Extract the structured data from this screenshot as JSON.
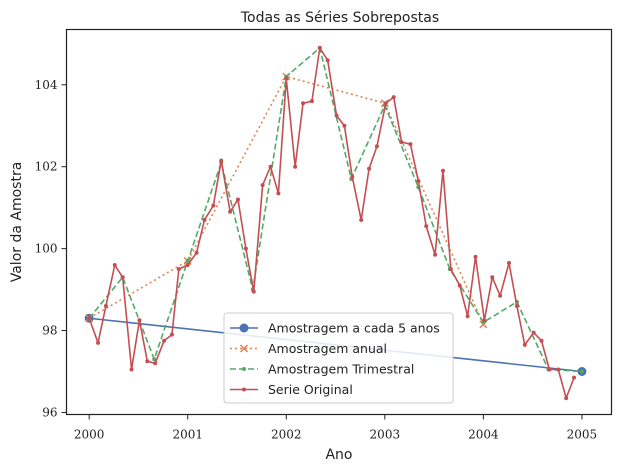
{
  "chart_data": {
    "type": "line",
    "title": "Todas as Séries Sobrepostas",
    "xlabel": "Ano",
    "ylabel": "Valor da Amostra",
    "xlim": [
      1999.77,
      2005.3
    ],
    "ylim": [
      95.95,
      105.35
    ],
    "xticks": [
      2000,
      2001,
      2002,
      2003,
      2004,
      2005
    ],
    "yticks": [
      96,
      98,
      100,
      102,
      104
    ],
    "xtick_labels": [
      "2000",
      "2001",
      "2002",
      "2003",
      "2004",
      "2005"
    ],
    "ytick_labels": [
      "96",
      "98",
      "100",
      "102",
      "104"
    ],
    "grid": false,
    "legend_position": "lower-center",
    "series": [
      {
        "name": "Amostragem a cada 5 anos",
        "color": "#4c72b0",
        "style": "solid",
        "marker": "circle",
        "x": [
          2000.0,
          2005.0
        ],
        "y": [
          98.3,
          97.0
        ]
      },
      {
        "name": "Amostragem anual",
        "color": "#dd8452",
        "style": "dotted",
        "marker": "x",
        "x": [
          2000.0,
          2001.0,
          2002.0,
          2003.0,
          2004.0
        ],
        "y": [
          98.3,
          99.7,
          104.2,
          103.55,
          98.15
        ]
      },
      {
        "name": "Amostragem Trimestral",
        "color": "#55a868",
        "style": "dashed",
        "marker": "dot",
        "x": [
          2000.0,
          2000.34,
          2000.66,
          2001.0,
          2001.34,
          2001.66,
          2002.0,
          2002.34,
          2002.66,
          2003.0,
          2003.34,
          2003.66,
          2004.0,
          2004.34,
          2004.66,
          2005.0
        ],
        "y": [
          98.3,
          99.3,
          97.3,
          99.7,
          102.1,
          99.0,
          104.2,
          104.9,
          101.7,
          103.5,
          101.5,
          99.5,
          98.2,
          98.7,
          97.05,
          97.0
        ]
      },
      {
        "name": "Serie Original",
        "color": "#c44e52",
        "style": "solid",
        "marker": "dot",
        "x": [
          2000.0,
          2000.09,
          2000.17,
          2000.26,
          2000.34,
          2000.43,
          2000.51,
          2000.59,
          2000.67,
          2000.76,
          2000.84,
          2000.91,
          2001.0,
          2001.09,
          2001.17,
          2001.26,
          2001.34,
          2001.43,
          2001.51,
          2001.59,
          2001.67,
          2001.76,
          2001.84,
          2001.92,
          2002.0,
          2002.09,
          2002.17,
          2002.26,
          2002.34,
          2002.42,
          2002.51,
          2002.59,
          2002.67,
          2002.76,
          2002.84,
          2002.92,
          2003.01,
          2003.09,
          2003.17,
          2003.26,
          2003.34,
          2003.42,
          2003.51,
          2003.59,
          2003.67,
          2003.76,
          2003.84,
          2003.92,
          2004.01,
          2004.09,
          2004.17,
          2004.26,
          2004.34,
          2004.42,
          2004.51,
          2004.59,
          2004.67,
          2004.76,
          2004.84,
          2004.92
        ],
        "y": [
          98.3,
          97.7,
          98.6,
          99.6,
          99.3,
          97.05,
          98.25,
          97.25,
          97.2,
          97.75,
          97.9,
          99.5,
          99.6,
          99.9,
          100.7,
          101.05,
          102.15,
          100.9,
          101.2,
          100.0,
          98.95,
          101.55,
          102.0,
          101.35,
          104.15,
          102.0,
          103.55,
          103.6,
          104.9,
          104.6,
          103.25,
          103.0,
          101.75,
          100.7,
          101.95,
          102.5,
          103.55,
          103.7,
          102.6,
          102.55,
          101.65,
          100.55,
          99.85,
          101.9,
          99.5,
          99.1,
          98.35,
          99.8,
          98.25,
          99.3,
          98.85,
          99.65,
          98.6,
          97.65,
          97.95,
          97.75,
          97.05,
          97.05,
          96.35,
          96.85
        ]
      }
    ]
  }
}
